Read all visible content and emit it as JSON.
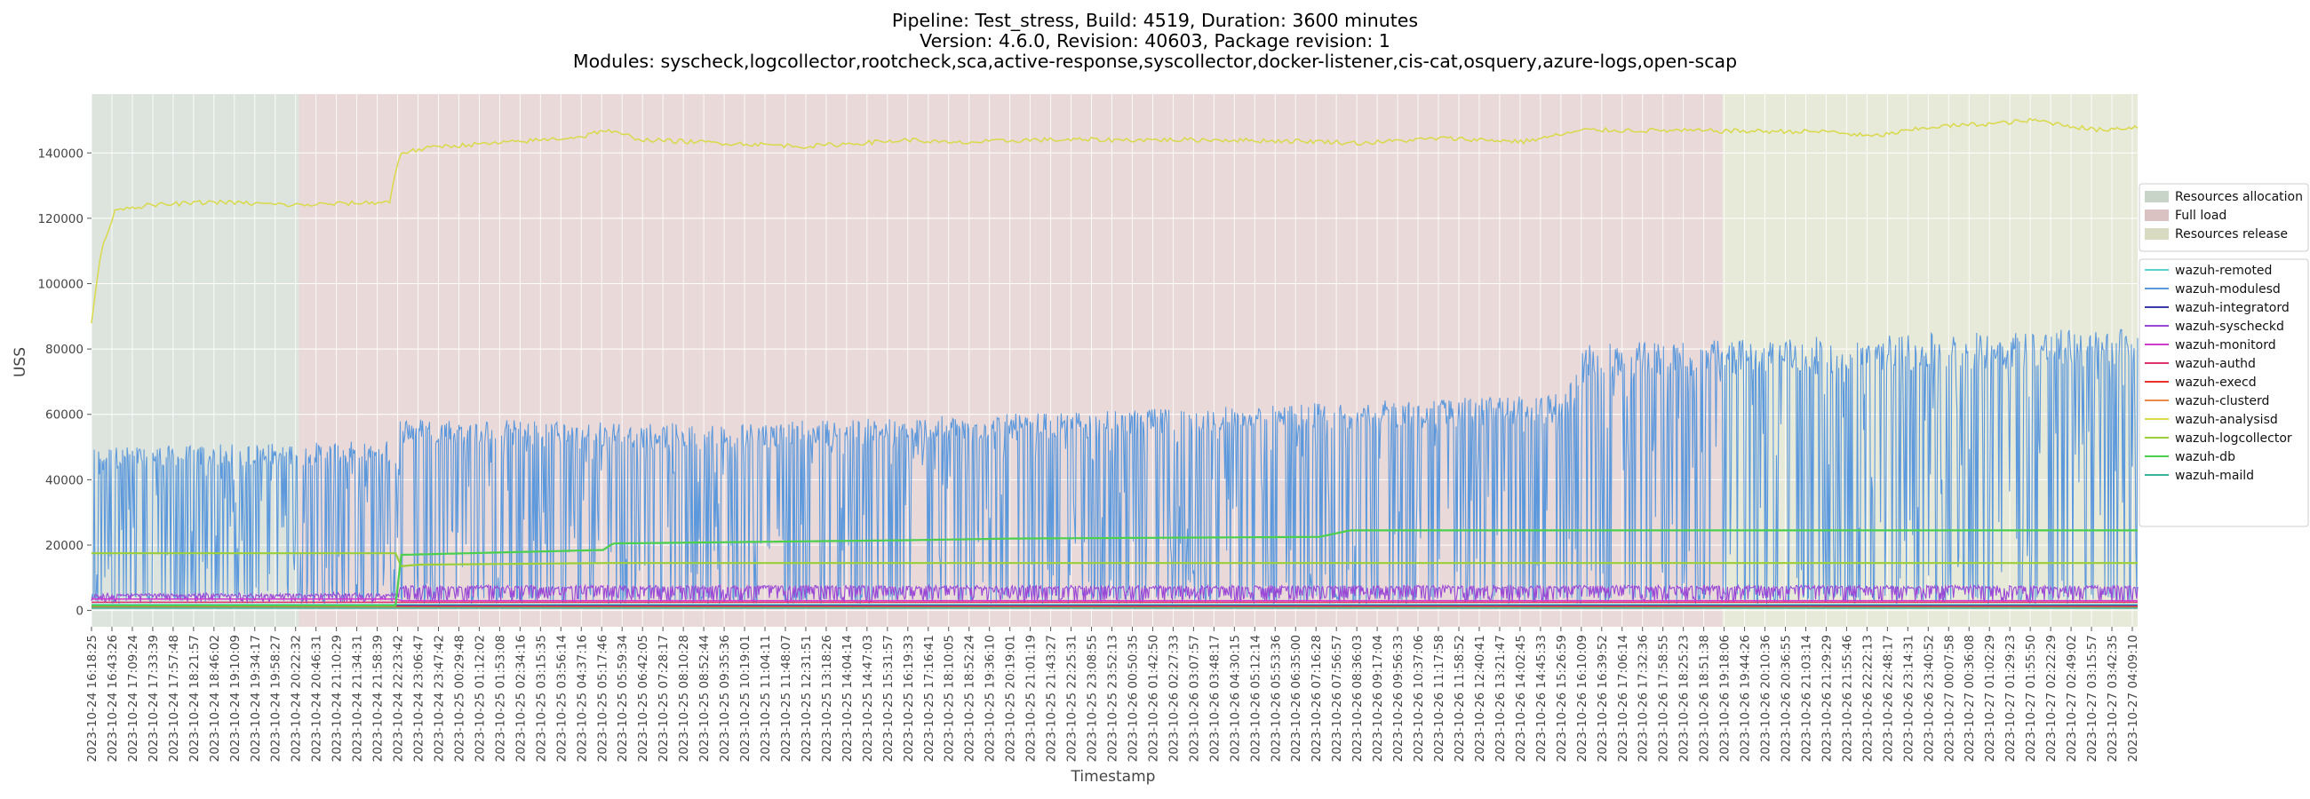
{
  "chart_data": {
    "type": "line",
    "title_lines": [
      "Pipeline: Test_stress, Build: 4519, Duration: 3600 minutes",
      "Version: 4.6.0, Revision: 40603, Package revision: 1",
      "Modules: syscheck,logcollector,rootcheck,sca,active-response,syscollector,docker-listener,cis-cat,osquery,azure-logs,open-scap"
    ],
    "xlabel": "Timestamp",
    "ylabel": "USS",
    "ylim": [
      -5000,
      158000
    ],
    "y_ticks": [
      0,
      20000,
      40000,
      60000,
      80000,
      100000,
      120000,
      140000
    ],
    "x_range": [
      "2023-10-24 16:18:25",
      "2023-10-27 04:21:00"
    ],
    "x_tick_labels": [
      "2023-10-24 16:18:25",
      "2023-10-24 16:43:26",
      "2023-10-24 17:09:24",
      "2023-10-24 17:33:39",
      "2023-10-24 17:57:48",
      "2023-10-24 18:21:57",
      "2023-10-24 18:46:02",
      "2023-10-24 19:10:09",
      "2023-10-24 19:34:17",
      "2023-10-24 19:58:27",
      "2023-10-24 20:22:32",
      "2023-10-24 20:46:31",
      "2023-10-24 21:10:29",
      "2023-10-24 21:34:31",
      "2023-10-24 21:58:39",
      "2023-10-24 22:23:42",
      "2023-10-24 23:06:47",
      "2023-10-24 23:47:42",
      "2023-10-25 00:29:48",
      "2023-10-25 01:12:02",
      "2023-10-25 01:53:08",
      "2023-10-25 02:34:16",
      "2023-10-25 03:15:35",
      "2023-10-25 03:56:14",
      "2023-10-25 04:37:16",
      "2023-10-25 05:17:46",
      "2023-10-25 05:59:34",
      "2023-10-25 06:42:05",
      "2023-10-25 07:28:17",
      "2023-10-25 08:10:28",
      "2023-10-25 08:52:44",
      "2023-10-25 09:35:36",
      "2023-10-25 10:19:01",
      "2023-10-25 11:04:11",
      "2023-10-25 11:48:07",
      "2023-10-25 12:31:51",
      "2023-10-25 13:18:26",
      "2023-10-25 14:04:14",
      "2023-10-25 14:47:03",
      "2023-10-25 15:31:57",
      "2023-10-25 16:19:33",
      "2023-10-25 17:16:41",
      "2023-10-25 18:10:05",
      "2023-10-25 18:52:24",
      "2023-10-25 19:36:10",
      "2023-10-25 20:19:01",
      "2023-10-25 21:01:19",
      "2023-10-25 21:43:27",
      "2023-10-25 22:25:31",
      "2023-10-25 23:08:55",
      "2023-10-25 23:52:13",
      "2023-10-26 00:50:35",
      "2023-10-26 01:42:50",
      "2023-10-26 02:27:33",
      "2023-10-26 03:07:57",
      "2023-10-26 03:48:17",
      "2023-10-26 04:30:15",
      "2023-10-26 05:12:14",
      "2023-10-26 05:53:36",
      "2023-10-26 06:35:00",
      "2023-10-26 07:16:28",
      "2023-10-26 07:56:57",
      "2023-10-26 08:36:03",
      "2023-10-26 09:17:04",
      "2023-10-26 09:56:33",
      "2023-10-26 10:37:06",
      "2023-10-26 11:17:58",
      "2023-10-26 11:58:52",
      "2023-10-26 12:40:41",
      "2023-10-26 13:21:47",
      "2023-10-26 14:02:45",
      "2023-10-26 14:45:33",
      "2023-10-26 15:26:59",
      "2023-10-26 16:10:09",
      "2023-10-26 16:39:52",
      "2023-10-26 17:06:14",
      "2023-10-26 17:32:36",
      "2023-10-26 17:58:55",
      "2023-10-26 18:25:23",
      "2023-10-26 18:51:38",
      "2023-10-26 19:18:06",
      "2023-10-26 19:44:26",
      "2023-10-26 20:10:36",
      "2023-10-26 20:36:55",
      "2023-10-26 21:03:14",
      "2023-10-26 21:29:29",
      "2023-10-26 21:55:46",
      "2023-10-26 22:22:13",
      "2023-10-26 22:48:17",
      "2023-10-26 23:14:31",
      "2023-10-26 23:40:52",
      "2023-10-27 00:07:58",
      "2023-10-27 00:36:08",
      "2023-10-27 01:02:29",
      "2023-10-27 01:29:23",
      "2023-10-27 01:55:50",
      "2023-10-27 02:22:29",
      "2023-10-27 02:49:02",
      "2023-10-27 03:15:57",
      "2023-10-27 03:42:35",
      "2023-10-27 04:09:10"
    ],
    "phases": [
      {
        "name": "Resources allocation",
        "start": "2023-10-24 16:18:25",
        "end": "2023-10-24 22:23:42",
        "color": "#c8d4c8"
      },
      {
        "name": "Full load",
        "start": "2023-10-24 22:23:42",
        "end": "2023-10-26 16:10:09",
        "color": "#dbc2c2"
      },
      {
        "name": "Resources release",
        "start": "2023-10-26 16:10:09",
        "end": "2023-10-27 04:21:00",
        "color": "#d8dbc2"
      }
    ],
    "grid": true,
    "legend_position": "right",
    "series": [
      {
        "name": "wazuh-remoted",
        "color": "#5ccfcf",
        "values": [
          [
            0,
            1800
          ],
          [
            1,
            1800
          ]
        ]
      },
      {
        "name": "wazuh-modulesd",
        "color": "#5b98dc",
        "band": {
          "low": 2000,
          "high": [
            [
              0,
              49000
            ],
            [
              0.15,
              51000
            ],
            [
              0.149,
              51000
            ],
            [
              0.151,
              58000
            ],
            [
              0.3,
              56000
            ],
            [
              0.5,
              60000
            ],
            [
              0.72,
              65000
            ],
            [
              0.73,
              80000
            ],
            [
              1,
              85000
            ]
          ]
        }
      },
      {
        "name": "wazuh-integratord",
        "color": "#3b3ba8",
        "values": [
          [
            0,
            1500
          ],
          [
            1,
            1500
          ]
        ]
      },
      {
        "name": "wazuh-syscheckd",
        "color": "#9b47d6",
        "band": {
          "low": 2500,
          "high": [
            [
              0,
              5000
            ],
            [
              0.149,
              5000
            ],
            [
              0.151,
              7500
            ],
            [
              1,
              7500
            ]
          ]
        }
      },
      {
        "name": "wazuh-monitord",
        "color": "#d03ad0",
        "values": [
          [
            0,
            3500
          ],
          [
            0.149,
            3500
          ],
          [
            0.151,
            3000
          ],
          [
            1,
            3000
          ]
        ]
      },
      {
        "name": "wazuh-authd",
        "color": "#e0306e",
        "values": [
          [
            0,
            2500
          ],
          [
            1,
            2500
          ]
        ]
      },
      {
        "name": "wazuh-execd",
        "color": "#e8302e",
        "values": [
          [
            0,
            1200
          ],
          [
            1,
            1200
          ]
        ]
      },
      {
        "name": "wazuh-clusterd",
        "color": "#e98a4c",
        "values": [
          [
            0,
            900
          ],
          [
            1,
            900
          ]
        ]
      },
      {
        "name": "wazuh-analysisd",
        "color": "#d9d94a",
        "values": [
          [
            0,
            88000
          ],
          [
            0.003,
            103000
          ],
          [
            0.006,
            113000
          ],
          [
            0.009,
            118000
          ],
          [
            0.012,
            123000
          ],
          [
            0.03,
            124000
          ],
          [
            0.06,
            125000
          ],
          [
            0.1,
            124000
          ],
          [
            0.146,
            125000
          ],
          [
            0.148,
            133000
          ],
          [
            0.151,
            140000
          ],
          [
            0.17,
            142000
          ],
          [
            0.2,
            143000
          ],
          [
            0.22,
            144000
          ],
          [
            0.24,
            145000
          ],
          [
            0.25,
            147000
          ],
          [
            0.27,
            144000
          ],
          [
            0.31,
            143000
          ],
          [
            0.35,
            142000
          ],
          [
            0.4,
            144000
          ],
          [
            0.42,
            143000
          ],
          [
            0.46,
            144000
          ],
          [
            0.5,
            144000
          ],
          [
            0.55,
            144000
          ],
          [
            0.6,
            143500
          ],
          [
            0.62,
            143000
          ],
          [
            0.66,
            144500
          ],
          [
            0.7,
            143500
          ],
          [
            0.73,
            147000
          ],
          [
            0.85,
            146500
          ],
          [
            0.87,
            145000
          ],
          [
            0.9,
            148000
          ],
          [
            0.93,
            149000
          ],
          [
            0.95,
            150000
          ],
          [
            0.98,
            147000
          ],
          [
            1,
            148000
          ]
        ]
      },
      {
        "name": "wazuh-logcollector",
        "color": "#9bcf3a",
        "values": [
          [
            0,
            17500
          ],
          [
            0.149,
            17500
          ],
          [
            0.151,
            13500
          ],
          [
            0.16,
            14000
          ],
          [
            0.25,
            14500
          ],
          [
            1,
            14500
          ]
        ]
      },
      {
        "name": "wazuh-db",
        "color": "#4ccf4c",
        "values": [
          [
            0,
            1500
          ],
          [
            0.149,
            1500
          ],
          [
            0.151,
            17000
          ],
          [
            0.25,
            18500
          ],
          [
            0.255,
            20500
          ],
          [
            0.4,
            21500
          ],
          [
            0.45,
            22000
          ],
          [
            0.6,
            22500
          ],
          [
            0.615,
            24500
          ],
          [
            1,
            24500
          ]
        ]
      },
      {
        "name": "wazuh-maild",
        "color": "#39b39a",
        "values": [
          [
            0,
            700
          ],
          [
            1,
            700
          ]
        ]
      }
    ]
  }
}
